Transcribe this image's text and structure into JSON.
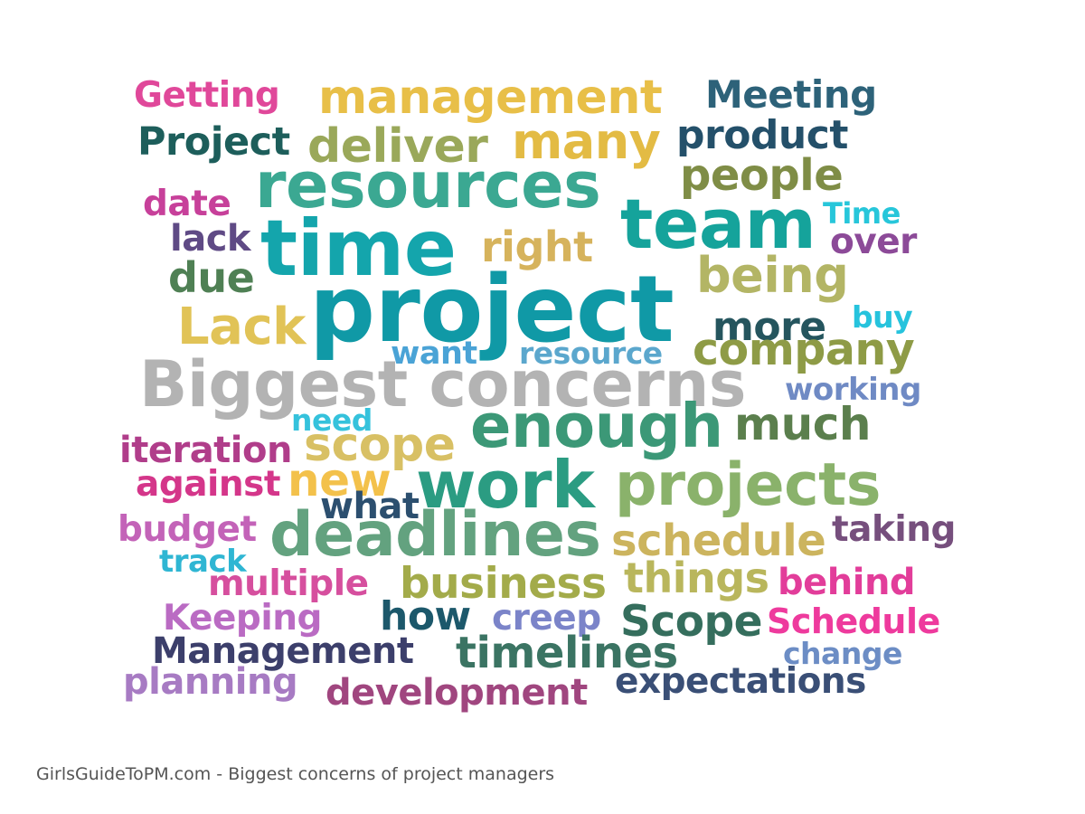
{
  "words": [
    {
      "text": "Getting",
      "color": "#e0489a"
    },
    {
      "text": "management",
      "color": "#e8bf48"
    },
    {
      "text": "Meeting",
      "color": "#2d6279"
    },
    {
      "text": "Project",
      "color": "#1d5e5b"
    },
    {
      "text": "deliver",
      "color": "#9aa85a"
    },
    {
      "text": "many",
      "color": "#e3bb44"
    },
    {
      "text": "product",
      "color": "#24506a"
    },
    {
      "text": "resources",
      "color": "#3ba892"
    },
    {
      "text": "people",
      "color": "#7f8d46"
    },
    {
      "text": "date",
      "color": "#c7409a"
    },
    {
      "text": "team",
      "color": "#15a39b"
    },
    {
      "text": "Time",
      "color": "#27c6da"
    },
    {
      "text": "lack",
      "color": "#5f4a85"
    },
    {
      "text": "time",
      "color": "#14a5ac"
    },
    {
      "text": "right",
      "color": "#d6b35c"
    },
    {
      "text": "over",
      "color": "#8c4a98"
    },
    {
      "text": "due",
      "color": "#4f8054"
    },
    {
      "text": "being",
      "color": "#b3b565"
    },
    {
      "text": "project",
      "color": "#1099a6"
    },
    {
      "text": "Lack",
      "color": "#e1c357"
    },
    {
      "text": "more",
      "color": "#25555e"
    },
    {
      "text": "buy",
      "color": "#26c3dd"
    },
    {
      "text": "want",
      "color": "#4aa3d6"
    },
    {
      "text": "resource",
      "color": "#5ba7cd"
    },
    {
      "text": "company",
      "color": "#8e9b46"
    },
    {
      "text": "Biggest concerns",
      "color": "#b3b3b3"
    },
    {
      "text": "working",
      "color": "#6f8ac4"
    },
    {
      "text": "need",
      "color": "#35c2dc"
    },
    {
      "text": "enough",
      "color": "#3c9877"
    },
    {
      "text": "much",
      "color": "#5b7f4d"
    },
    {
      "text": "iteration",
      "color": "#b03d8a"
    },
    {
      "text": "scope",
      "color": "#d8c064"
    },
    {
      "text": "against",
      "color": "#d4368a"
    },
    {
      "text": "new",
      "color": "#f3c14b"
    },
    {
      "text": "work",
      "color": "#2b9c82"
    },
    {
      "text": "projects",
      "color": "#8ab26b"
    },
    {
      "text": "what",
      "color": "#2c4f6f"
    },
    {
      "text": "budget",
      "color": "#c363b8"
    },
    {
      "text": "deadlines",
      "color": "#63a27f"
    },
    {
      "text": "schedule",
      "color": "#ccb45e"
    },
    {
      "text": "taking",
      "color": "#764f7d"
    },
    {
      "text": "track",
      "color": "#2fb6d3"
    },
    {
      "text": "multiple",
      "color": "#d64f9e"
    },
    {
      "text": "business",
      "color": "#a3ab4a"
    },
    {
      "text": "things",
      "color": "#b9b65c"
    },
    {
      "text": "behind",
      "color": "#e23d9a"
    },
    {
      "text": "Keeping",
      "color": "#ba6bc3"
    },
    {
      "text": "how",
      "color": "#1c586b"
    },
    {
      "text": "creep",
      "color": "#7b84c9"
    },
    {
      "text": "Scope",
      "color": "#356e5d"
    },
    {
      "text": "Schedule",
      "color": "#ee3a9d"
    },
    {
      "text": "Management",
      "color": "#3c3f6b"
    },
    {
      "text": "timelines",
      "color": "#3b7463"
    },
    {
      "text": "change",
      "color": "#6c8dc5"
    },
    {
      "text": "planning",
      "color": "#a77bc3"
    },
    {
      "text": "development",
      "color": "#a0467f"
    },
    {
      "text": "expectations",
      "color": "#3a4f76"
    }
  ],
  "caption": "GirlsGuideToPM.com - Biggest concerns of project managers"
}
